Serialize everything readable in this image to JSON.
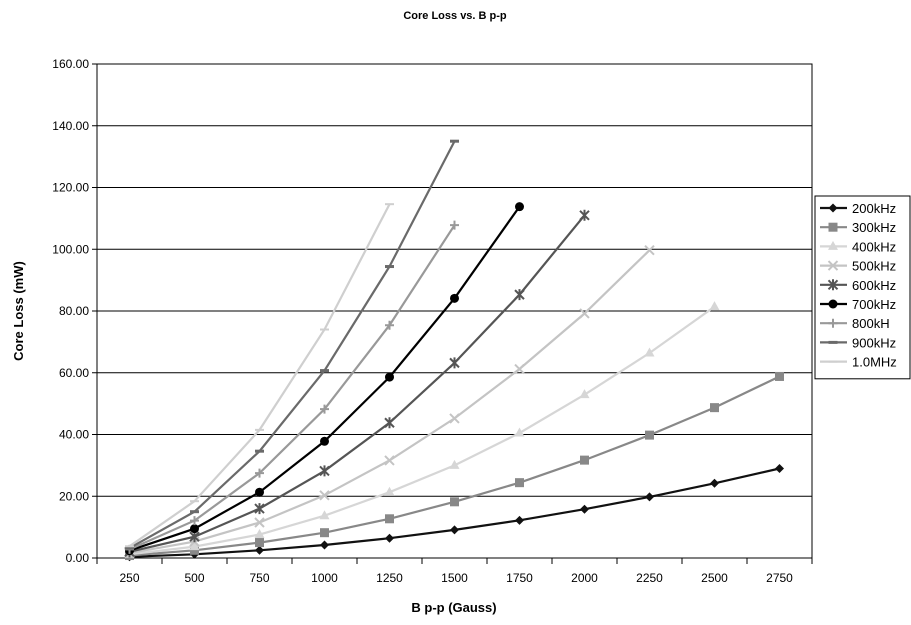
{
  "chart_data": {
    "type": "line",
    "title": "Core Loss vs. B p-p",
    "xlabel": "B p-p (Gauss)",
    "ylabel": "Core Loss (mW)",
    "categories": [
      "250",
      "500",
      "750",
      "1000",
      "1250",
      "1500",
      "1750",
      "2000",
      "2250",
      "2500",
      "2750"
    ],
    "ylim": [
      0,
      160
    ],
    "yticks": [
      "0.00",
      "20.00",
      "40.00",
      "60.00",
      "80.00",
      "100.00",
      "120.00",
      "140.00",
      "160.00"
    ],
    "grid": true,
    "legend_position": "right",
    "series": [
      {
        "name": "200kHz",
        "marker": "diamond",
        "color": "#111111",
        "values": [
          0.4,
          1.2,
          2.5,
          4.2,
          6.4,
          9.1,
          12.2,
          15.8,
          19.8,
          24.2,
          29.0
        ]
      },
      {
        "name": "300kHz",
        "marker": "square",
        "color": "#888888",
        "values": [
          0.8,
          2.5,
          5.0,
          8.2,
          12.7,
          18.2,
          24.4,
          31.7,
          39.8,
          48.7,
          58.8
        ]
      },
      {
        "name": "400kHz",
        "marker": "triangle",
        "color": "#d6d6d6",
        "values": [
          1.2,
          3.7,
          7.6,
          13.7,
          21.3,
          30.0,
          40.5,
          52.9,
          66.4,
          81.4,
          null
        ]
      },
      {
        "name": "500kHz",
        "marker": "x",
        "color": "#c4c4c4",
        "values": [
          1.6,
          5.3,
          11.5,
          20.3,
          31.6,
          45.2,
          61.2,
          79.2,
          99.7,
          null,
          null
        ]
      },
      {
        "name": "600kHz",
        "marker": "star",
        "color": "#555555",
        "values": [
          2.0,
          6.9,
          16.0,
          28.2,
          43.8,
          63.2,
          85.3,
          111.0,
          null,
          null,
          null
        ]
      },
      {
        "name": "700kHz",
        "marker": "circle",
        "color": "#000000",
        "values": [
          2.4,
          9.5,
          21.3,
          37.8,
          58.6,
          84.1,
          113.8,
          null,
          null,
          null,
          null
        ]
      },
      {
        "name": "800kH",
        "marker": "plus",
        "color": "#999999",
        "values": [
          2.8,
          12.1,
          27.5,
          48.2,
          75.4,
          107.8,
          null,
          null,
          null,
          null,
          null
        ]
      },
      {
        "name": "900kHz",
        "marker": "dash",
        "color": "#6a6a6a",
        "values": [
          3.2,
          15.0,
          34.6,
          60.7,
          94.4,
          135.0,
          null,
          null,
          null,
          null,
          null
        ]
      },
      {
        "name": "1.0MHz",
        "marker": "bar",
        "color": "#cfcfcf",
        "values": [
          3.8,
          18.4,
          41.5,
          74.0,
          114.6,
          null,
          null,
          null,
          null,
          null,
          null
        ]
      }
    ]
  }
}
